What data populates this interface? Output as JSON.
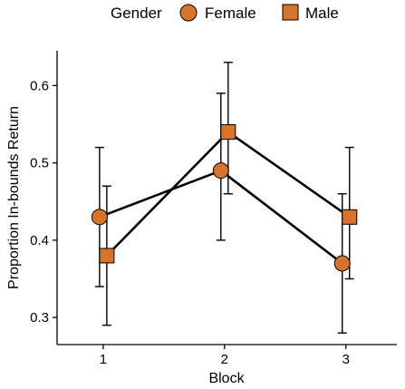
{
  "chart_data": {
    "type": "line",
    "xlabel": "Block",
    "ylabel": "Proportion In-bounds Return",
    "x": [
      1,
      2,
      3
    ],
    "x_tick_labels": [
      "1",
      "2",
      "3"
    ],
    "xlim": [
      0.62,
      3.42
    ],
    "y_ticks": [
      0.3,
      0.4,
      0.5,
      0.6
    ],
    "y_tick_labels": [
      "0.3",
      "0.4",
      "0.5",
      "0.6"
    ],
    "ylim": [
      0.265,
      0.645
    ],
    "grid": false,
    "legend": {
      "title": "Gender",
      "position": "top",
      "entries": [
        "Female",
        "Male"
      ]
    },
    "series": [
      {
        "name": "Female",
        "marker": "circle",
        "color": "#d7742a",
        "values": [
          0.43,
          0.49,
          0.37
        ],
        "error_lower": [
          0.34,
          0.4,
          0.28
        ],
        "error_upper": [
          0.52,
          0.59,
          0.46
        ]
      },
      {
        "name": "Male",
        "marker": "square",
        "color": "#d7742a",
        "values": [
          0.38,
          0.54,
          0.43
        ],
        "error_lower": [
          0.29,
          0.46,
          0.35
        ],
        "error_upper": [
          0.47,
          0.63,
          0.52
        ]
      }
    ]
  }
}
